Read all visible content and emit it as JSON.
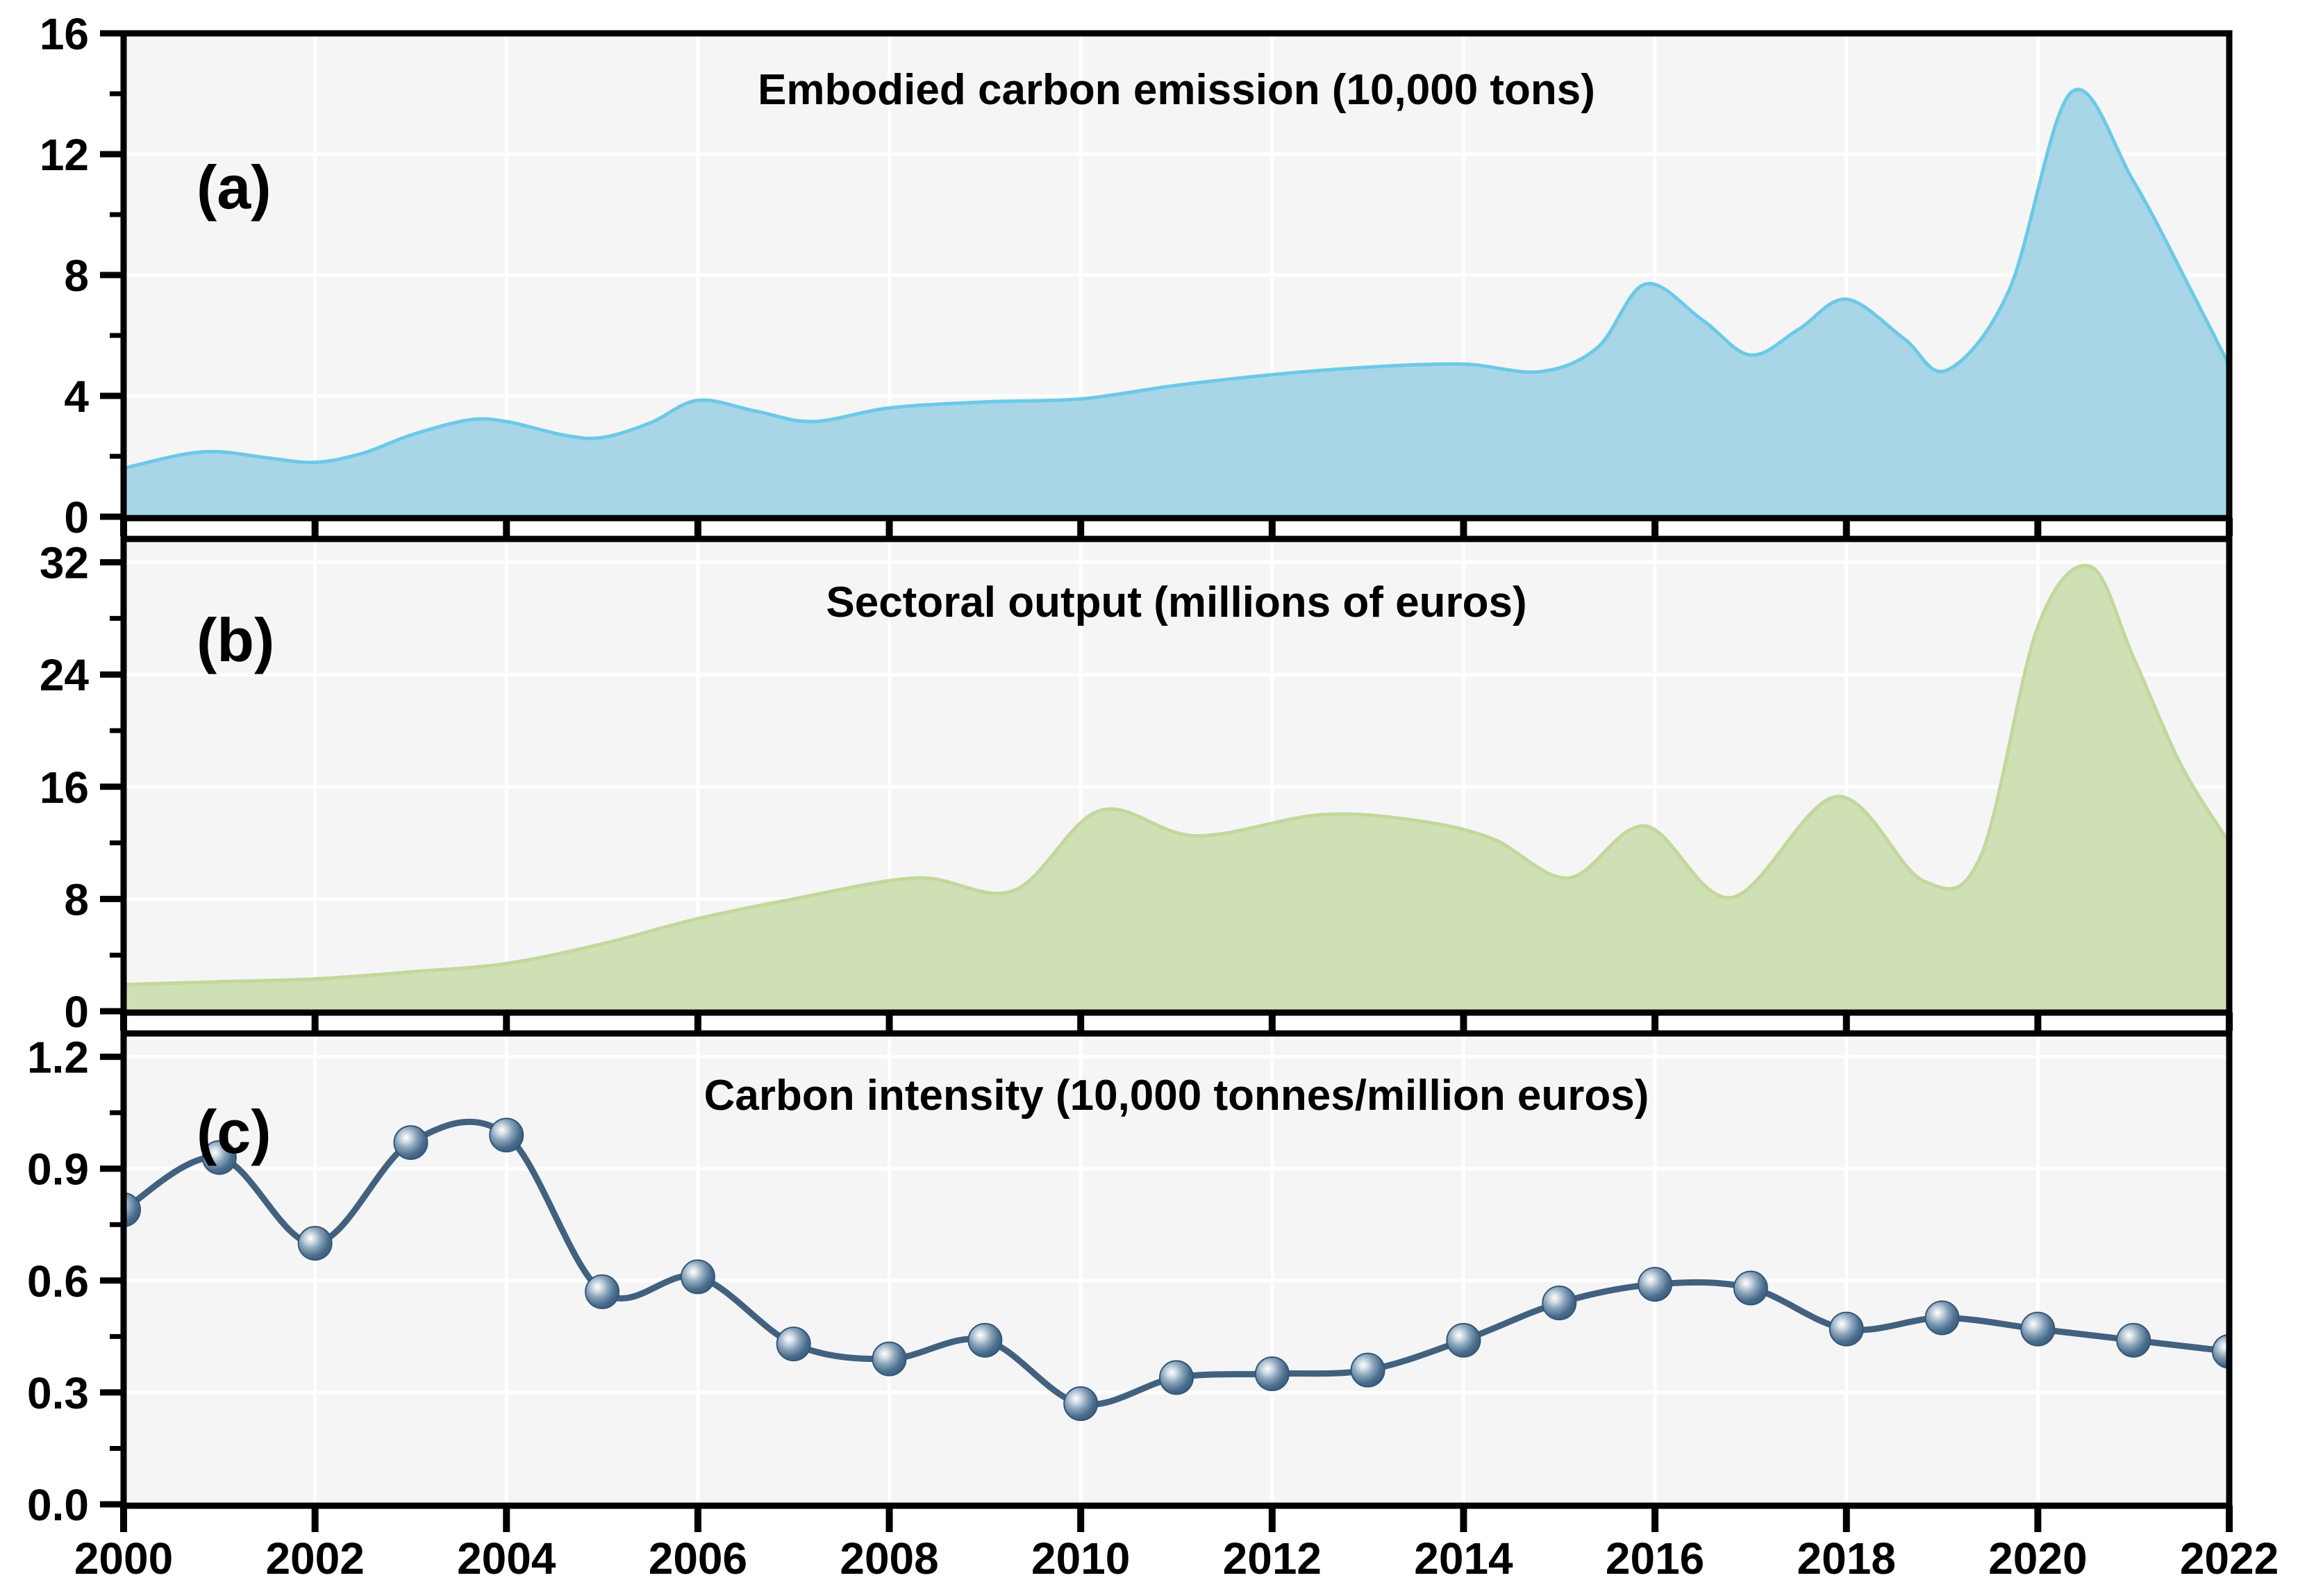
{
  "figure": {
    "background": "#ffffff",
    "plot_background": "#f5f5f6",
    "gridline_color": "#ffffff",
    "axis_color": "#000000"
  },
  "x_axis": {
    "range": [
      2000,
      2022
    ],
    "tick_values": [
      2000,
      2002,
      2004,
      2006,
      2008,
      2010,
      2012,
      2014,
      2016,
      2018,
      2020,
      2022
    ],
    "tick_labels": [
      "2000",
      "2002",
      "2004",
      "2006",
      "2008",
      "2010",
      "2012",
      "2014",
      "2016",
      "2018",
      "2020",
      "2022"
    ]
  },
  "chart_data": [
    {
      "type": "area",
      "panel_label": "(a)",
      "title": "Embodied carbon emission (10,000 tons)",
      "ylim": [
        0,
        16
      ],
      "ytick_values": [
        0,
        4,
        8,
        12,
        16
      ],
      "ytick_labels": [
        "0",
        "4",
        "8",
        "12",
        "16"
      ],
      "yminor_values": [
        2,
        6,
        10,
        14
      ],
      "fill_color": "#a8d6e7",
      "edge_color": "#6cc9e8",
      "grid": true,
      "smoothed": true,
      "x": [
        2000,
        2000.6,
        2001,
        2001.5,
        2002,
        2002.5,
        2003,
        2003.6,
        2004,
        2004.6,
        2005,
        2005.5,
        2006,
        2006.6,
        2007.2,
        2008,
        2009,
        2010,
        2011,
        2012,
        2013,
        2014,
        2014.8,
        2015.4,
        2015.9,
        2016.5,
        2017,
        2017.5,
        2018,
        2018.6,
        2019.05,
        2019.7,
        2020.35,
        2021,
        2021.6,
        2022
      ],
      "values": [
        1.6,
        2.05,
        2.15,
        1.95,
        1.8,
        2.1,
        2.7,
        3.2,
        3.15,
        2.7,
        2.62,
        3.1,
        3.85,
        3.5,
        3.15,
        3.6,
        3.8,
        3.9,
        4.35,
        4.7,
        4.95,
        5.05,
        4.8,
        5.6,
        7.7,
        6.5,
        5.35,
        6.2,
        7.2,
        5.9,
        4.85,
        7.5,
        14.05,
        11.1,
        7.5,
        5.0
      ]
    },
    {
      "type": "area",
      "panel_label": "(b)",
      "title": "Sectoral output (millions of euros)",
      "ylim": [
        0,
        32
      ],
      "ytick_values": [
        0,
        8,
        16,
        24,
        32
      ],
      "ytick_labels": [
        "0",
        "8",
        "16",
        "24",
        "32"
      ],
      "yminor_values": [
        4,
        12,
        20,
        28
      ],
      "fill_color": "#cfe0b4",
      "edge_color": "#c2d89c",
      "grid": true,
      "smoothed": true,
      "x": [
        2000,
        2001,
        2002,
        2003,
        2004,
        2005,
        2006,
        2007,
        2008.3,
        2009.3,
        2010.2,
        2011.2,
        2012.5,
        2013.5,
        2014.3,
        2015.1,
        2015.9,
        2016.8,
        2017.9,
        2018.8,
        2019.4,
        2020,
        2020.55,
        2021,
        2021.5,
        2022
      ],
      "values": [
        1.9,
        2.1,
        2.3,
        2.8,
        3.4,
        4.8,
        6.6,
        8.0,
        9.5,
        8.6,
        14.3,
        12.5,
        14.0,
        13.6,
        12.3,
        9.5,
        13.2,
        8.1,
        15.3,
        9.3,
        11.0,
        27.4,
        31.7,
        25.2,
        17.5,
        12.0
      ]
    },
    {
      "type": "line",
      "panel_label": "(c)",
      "title": "Carbon intensity (10,000 tonnes/million euros)",
      "ylim": [
        0,
        1.2
      ],
      "ytick_values": [
        0,
        0.3,
        0.6,
        0.9,
        1.2
      ],
      "ytick_labels": [
        "0.0",
        "0.3",
        "0.6",
        "0.9",
        "1.2"
      ],
      "yminor_values": [
        0.15,
        0.45,
        0.75,
        1.05
      ],
      "line_color": "#41617f",
      "marker": {
        "style": "sphere",
        "radius": 24,
        "base_color": "#3f617f",
        "highlight_color": "#ffffff",
        "rim_color": "#33567a"
      },
      "grid": true,
      "smoothed": true,
      "x": [
        2000,
        2001,
        2002,
        2003,
        2004,
        2005,
        2006,
        2007,
        2008,
        2009,
        2010,
        2011,
        2012,
        2013,
        2014,
        2015,
        2016,
        2017,
        2018,
        2019,
        2020,
        2021,
        2022
      ],
      "values": [
        0.79,
        0.93,
        0.7,
        0.97,
        0.99,
        0.57,
        0.61,
        0.43,
        0.39,
        0.44,
        0.27,
        0.34,
        0.35,
        0.36,
        0.44,
        0.54,
        0.59,
        0.58,
        0.47,
        0.5,
        0.47,
        0.44,
        0.41
      ]
    }
  ]
}
